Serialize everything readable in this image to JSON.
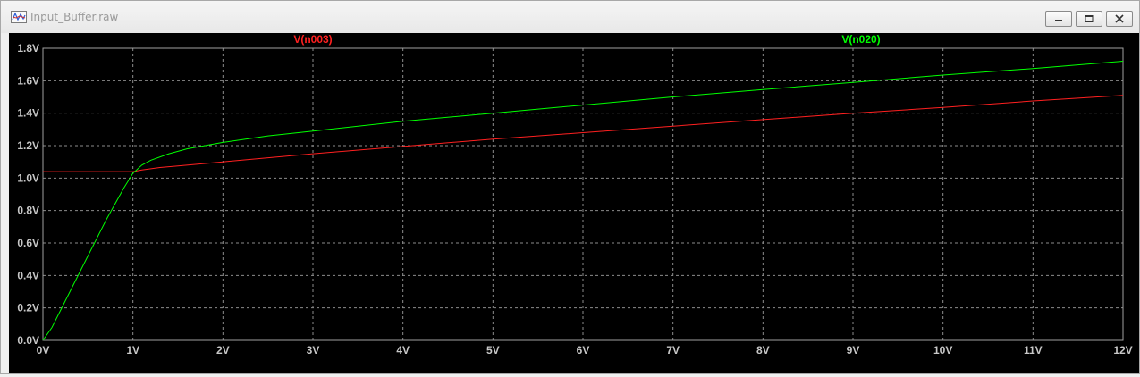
{
  "window": {
    "title": "Input_Buffer.raw",
    "icon": "waveform-icon"
  },
  "controls": {
    "minimize_icon": "minimize-icon",
    "maximize_icon": "restore-icon",
    "close_icon": "close-icon"
  },
  "colors": {
    "plot_background": "#000000",
    "grid": "#8c8c8c",
    "axis_text": "#c8c8c8",
    "series_n003": "#ff2020",
    "series_n020": "#00ff00"
  },
  "chart_data": {
    "type": "line",
    "title": "",
    "xlabel": "",
    "ylabel": "",
    "xlim": [
      0,
      12
    ],
    "ylim": [
      0,
      1.8
    ],
    "x_ticks": [
      0,
      1,
      2,
      3,
      4,
      5,
      6,
      7,
      8,
      9,
      10,
      11,
      12
    ],
    "x_tick_labels": [
      "0V",
      "1V",
      "2V",
      "3V",
      "4V",
      "5V",
      "6V",
      "7V",
      "8V",
      "9V",
      "10V",
      "11V",
      "12V"
    ],
    "y_ticks": [
      0,
      0.2,
      0.4,
      0.6,
      0.8,
      1.0,
      1.2,
      1.4,
      1.6,
      1.8
    ],
    "y_tick_labels": [
      "0.0V",
      "0.2V",
      "0.4V",
      "0.6V",
      "0.8V",
      "1.0V",
      "1.2V",
      "1.4V",
      "1.6V",
      "1.8V"
    ],
    "grid": true,
    "legend": "top",
    "series": [
      {
        "name": "V(n003)",
        "color": "#ff2020",
        "x": [
          0,
          0.5,
          1.0,
          1.1,
          1.3,
          1.5,
          2,
          3,
          4,
          5,
          6,
          7,
          8,
          9,
          10,
          11,
          12
        ],
        "y": [
          1.04,
          1.04,
          1.04,
          1.05,
          1.065,
          1.075,
          1.1,
          1.15,
          1.195,
          1.24,
          1.28,
          1.32,
          1.36,
          1.4,
          1.435,
          1.475,
          1.51
        ]
      },
      {
        "name": "V(n020)",
        "color": "#00ff00",
        "x": [
          0,
          0.1,
          0.3,
          0.5,
          0.7,
          0.9,
          1.0,
          1.1,
          1.2,
          1.4,
          1.6,
          1.8,
          2,
          2.5,
          3,
          4,
          5,
          6,
          7,
          8,
          9,
          10,
          11,
          12
        ],
        "y": [
          0.0,
          0.08,
          0.3,
          0.52,
          0.74,
          0.94,
          1.03,
          1.08,
          1.11,
          1.15,
          1.18,
          1.2,
          1.22,
          1.26,
          1.29,
          1.35,
          1.4,
          1.45,
          1.5,
          1.545,
          1.59,
          1.635,
          1.675,
          1.72
        ]
      }
    ]
  }
}
